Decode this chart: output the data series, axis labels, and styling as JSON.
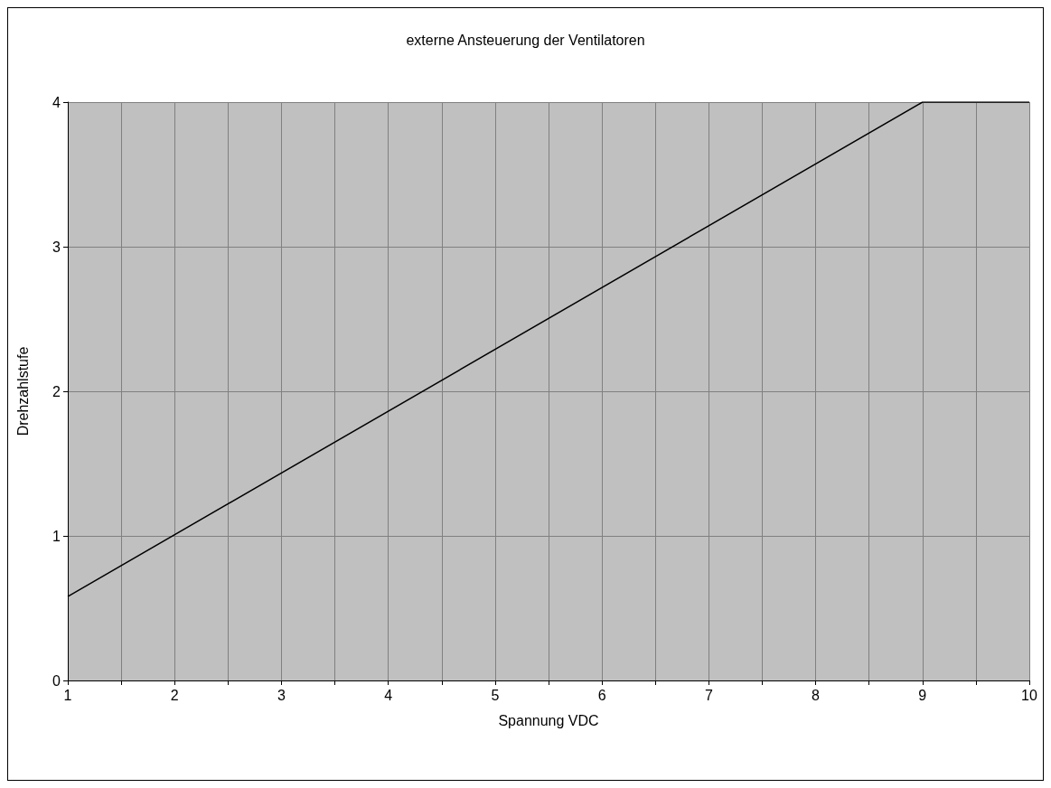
{
  "chart_data": {
    "type": "line",
    "title": "externe Ansteuerung der Ventilatoren",
    "xlabel": "Spannung VDC",
    "ylabel": "Drehzahlstufe",
    "x": [
      1,
      9,
      10
    ],
    "series": [
      {
        "color": "#000000",
        "values": [
          0.58,
          4,
          4
        ]
      }
    ],
    "xlim": [
      1,
      10
    ],
    "xticks": [
      1,
      {
        "value": 1.5,
        "label": null
      },
      2,
      {
        "value": 2.5,
        "label": null
      },
      3,
      {
        "value": 3.5,
        "label": null
      },
      4,
      {
        "value": 4.5,
        "label": null
      },
      5,
      {
        "value": 5.5,
        "label": null
      },
      6,
      {
        "value": 6.5,
        "label": null
      },
      7,
      {
        "value": 7.5,
        "label": null
      },
      8,
      {
        "value": 8.5,
        "label": null
      },
      9,
      {
        "value": 9.5,
        "label": null
      },
      10
    ],
    "ylim": [
      0,
      4
    ],
    "yticks": [
      0,
      1,
      2,
      3,
      4
    ],
    "grid": true,
    "marker": "none",
    "line_style": "solid"
  }
}
